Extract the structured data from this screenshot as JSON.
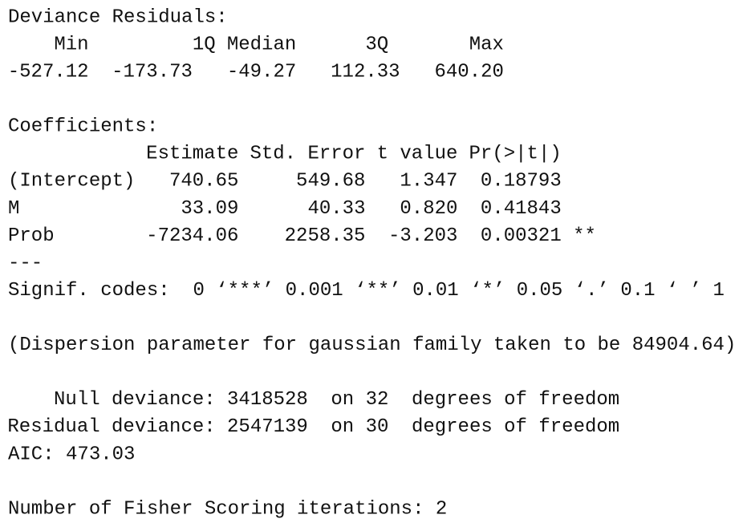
{
  "deviance_residuals": {
    "title": "Deviance Residuals:",
    "headers": [
      "Min",
      "1Q",
      "Median",
      "3Q",
      "Max"
    ],
    "values": [
      "-527.12",
      "-173.73",
      "-49.27",
      "112.33",
      "640.20"
    ]
  },
  "coefficients": {
    "title": "Coefficients:",
    "headers": [
      "Estimate",
      "Std. Error",
      "t value",
      "Pr(>|t|)"
    ],
    "rows": [
      {
        "label": "(Intercept)",
        "cells": [
          "740.65",
          "549.68",
          "1.347",
          "0.18793"
        ]
      },
      {
        "label": "M",
        "cells": [
          "33.09",
          "40.33",
          "0.820",
          "0.41843"
        ]
      },
      {
        "label": "Prob",
        "cells": [
          "-7234.06",
          "2258.35",
          "-3.203",
          "0.00321"
        ],
        "signif": "**"
      }
    ]
  },
  "separator": "---",
  "signif_codes": "Signif. codes:  0 ‘***’ 0.001 ‘**’ 0.01 ‘*’ 0.05 ‘.’ 0.1 ‘ ’ 1",
  "dispersion": "(Dispersion parameter for gaussian family taken to be 84904.64)",
  "deviance": [
    {
      "label": "Null deviance:",
      "value": "3418528",
      "df": "on 32",
      "unit": "degrees of freedom"
    },
    {
      "label": "Residual deviance:",
      "value": "2547139",
      "df": "on 30",
      "unit": "degrees of freedom"
    }
  ],
  "aic": "AIC: 473.03",
  "fisher": "Number of Fisher Scoring iterations: 2"
}
